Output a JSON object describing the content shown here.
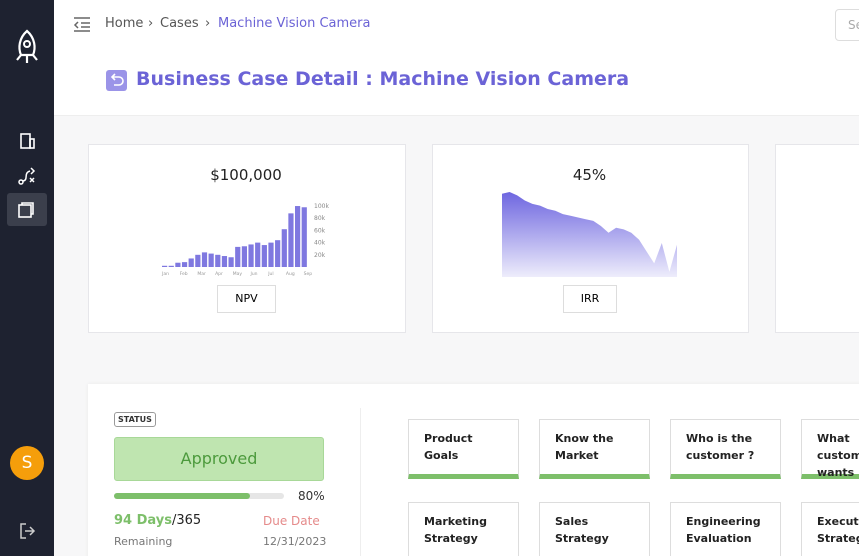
{
  "sidebar": {
    "avatar": "S"
  },
  "breadcrumb": [
    "Home",
    "Cases",
    "Machine Vision Camera"
  ],
  "search_placeholder": "Search",
  "title": "Business Case Detail : Machine Vision Camera",
  "kpis": [
    {
      "value": "$100,000",
      "label": "NPV"
    },
    {
      "value": "45%",
      "label": "IRR"
    }
  ],
  "npv_chart": {
    "type": "bar",
    "values": [
      2,
      2,
      7,
      8,
      14,
      20,
      24,
      22,
      20,
      18,
      16,
      33,
      34,
      37,
      40,
      36,
      40,
      44,
      62,
      88,
      100,
      98
    ],
    "ylim": [
      0,
      105
    ],
    "yticks": [
      {
        "value": 20,
        "label": "20k"
      },
      {
        "value": 40,
        "label": "40k"
      },
      {
        "value": 60,
        "label": "60k"
      },
      {
        "value": 80,
        "label": "80k"
      },
      {
        "value": 100,
        "label": "100k"
      }
    ],
    "month_labels": [
      "Jan",
      "Feb",
      "Mar",
      "Apr",
      "May",
      "Jun",
      "Jul",
      "Aug",
      "Sep"
    ],
    "color": "#7f78e0"
  },
  "irr_chart": {
    "type": "area",
    "values": [
      98,
      100,
      96,
      90,
      86,
      84,
      80,
      78,
      74,
      72,
      70,
      68,
      66,
      60,
      52,
      58,
      56,
      52,
      44,
      30,
      16,
      40,
      6,
      38
    ],
    "ylim": [
      0,
      100
    ],
    "color": "#6e66e0"
  },
  "status": {
    "badge": "STATUS",
    "state": "Approved",
    "progress": {
      "value": 80,
      "label": "80%"
    },
    "days": "94 Days",
    "total": "/365",
    "remaining": "Remaining",
    "due_label": "Due Date",
    "due_date": "12/31/2023"
  },
  "tiles": [
    "Product Goals",
    "Know the Market",
    "Who is the customer ?",
    "What customer wants",
    "Marketing Strategy",
    "Sales Strategy",
    "Engineering Evaluation",
    "Execution Strategy"
  ]
}
